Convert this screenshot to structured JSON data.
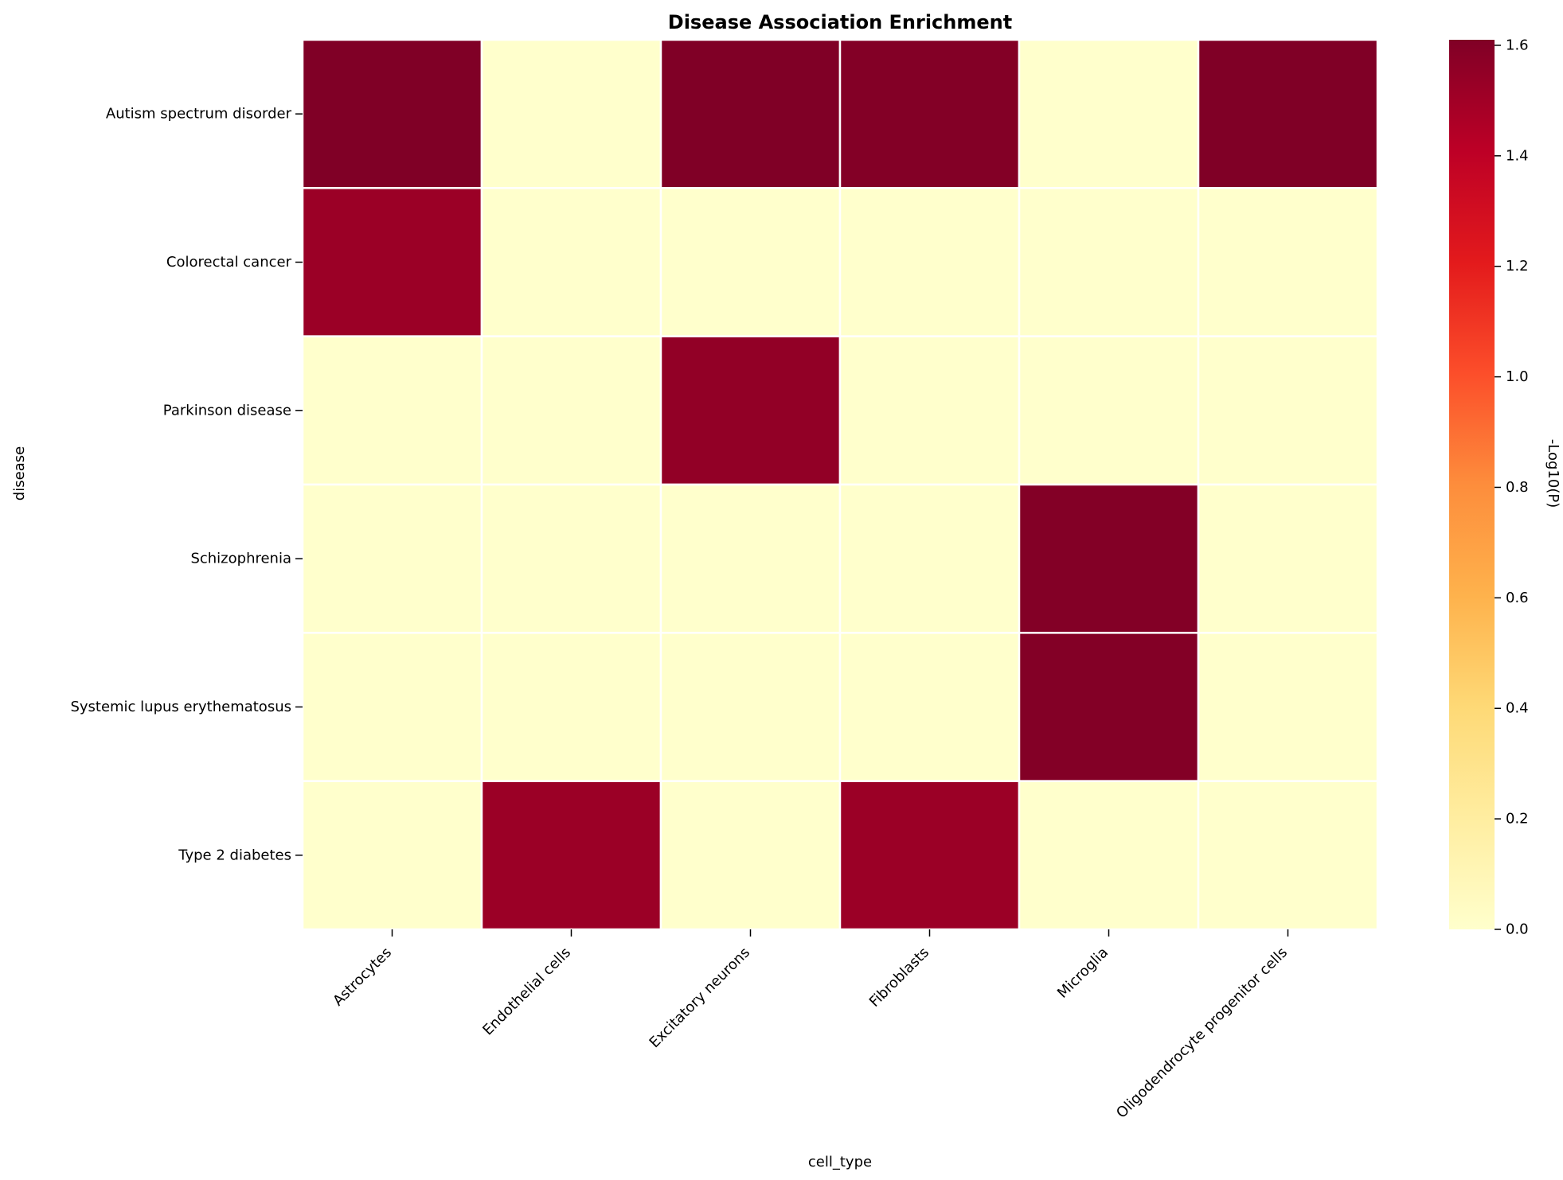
{
  "chart_data": {
    "type": "heatmap",
    "title": "Disease Association Enrichment",
    "xlabel": "cell_type",
    "ylabel": "disease",
    "x_categories": [
      "Astrocytes",
      "Endothelial cells",
      "Excitatory neurons",
      "Fibroblasts",
      "Microglia",
      "Oligodendrocyte progenitor cells"
    ],
    "y_categories": [
      "Autism spectrum disorder",
      "Colorectal cancer",
      "Parkinson disease",
      "Schizophrenia",
      "Systemic lupus erythematosus",
      "Type 2 diabetes"
    ],
    "values": [
      [
        1.61,
        0.0,
        1.61,
        1.6,
        0.0,
        1.61
      ],
      [
        1.52,
        0.0,
        0.0,
        0.0,
        0.0,
        0.0
      ],
      [
        0.0,
        0.0,
        1.55,
        0.0,
        0.0,
        0.0
      ],
      [
        0.0,
        0.0,
        0.0,
        0.0,
        1.6,
        0.0
      ],
      [
        0.0,
        0.0,
        0.0,
        0.0,
        1.6,
        0.0
      ],
      [
        0.0,
        1.52,
        0.0,
        1.52,
        0.0,
        0.0
      ]
    ],
    "colorbar": {
      "label": "-Log10(P)",
      "range": [
        0,
        1.61
      ],
      "ticks": [
        "0.0",
        "0.2",
        "0.4",
        "0.6",
        "0.8",
        "1.0",
        "1.2",
        "1.4",
        "1.6"
      ],
      "colormap": "YlOrRd",
      "colors": [
        "#ffffcc",
        "#ffeda0",
        "#fed976",
        "#feb24c",
        "#fd8d3c",
        "#fc4e2a",
        "#e31a1c",
        "#bd0026",
        "#800026"
      ]
    },
    "grid_line_color": "#ffffff"
  }
}
